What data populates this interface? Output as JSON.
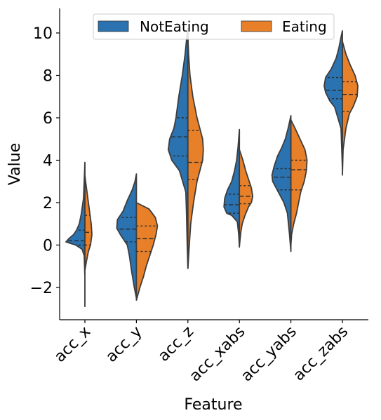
{
  "chart_data": {
    "type": "violin",
    "split": true,
    "xlabel": "Feature",
    "ylabel": "Value",
    "ylim": [
      -3.5,
      11.2
    ],
    "yticks": [
      -2,
      0,
      2,
      4,
      6,
      8,
      10
    ],
    "ytick_labels": [
      "−2",
      "0",
      "2",
      "4",
      "6",
      "8",
      "10"
    ],
    "categories": [
      "acc_x",
      "acc_y",
      "acc_z",
      "acc_xabs",
      "acc_yabs",
      "acc_zabs"
    ],
    "legend": {
      "position": "top-center",
      "ncol": 2
    },
    "series": [
      {
        "name": "NotEating",
        "color": "#2a72b0",
        "side": "left",
        "violins": [
          {
            "ymin": -2.9,
            "ymax": 3.9,
            "profile": [
              [
                -2.9,
                0
              ],
              [
                -1.5,
                0
              ],
              [
                -0.5,
                1
              ],
              [
                -0.2,
                4
              ],
              [
                0,
                13
              ],
              [
                0.15,
                27
              ],
              [
                0.3,
                23
              ],
              [
                0.5,
                16
              ],
              [
                0.7,
                12
              ],
              [
                1.0,
                8
              ],
              [
                1.5,
                5
              ],
              [
                2.2,
                2
              ],
              [
                3.0,
                1
              ],
              [
                3.9,
                0
              ]
            ],
            "quartiles": [
              0.0,
              0.2,
              0.7
            ]
          },
          {
            "ymin": -2.5,
            "ymax": 3.35,
            "profile": [
              [
                -2.5,
                0
              ],
              [
                -2.0,
                3
              ],
              [
                -1.2,
                7
              ],
              [
                -0.5,
                10
              ],
              [
                0,
                13
              ],
              [
                0.5,
                23
              ],
              [
                0.8,
                28
              ],
              [
                1.2,
                27
              ],
              [
                1.6,
                19
              ],
              [
                2.1,
                13
              ],
              [
                2.6,
                6
              ],
              [
                3.0,
                2
              ],
              [
                3.35,
                0
              ]
            ],
            "quartiles": [
              0.15,
              0.75,
              1.3
            ]
          },
          {
            "ymin": -1.1,
            "ymax": 10.2,
            "profile": [
              [
                -1.1,
                0
              ],
              [
                0,
                1
              ],
              [
                1.5,
                2
              ],
              [
                2.5,
                3
              ],
              [
                3.5,
                12
              ],
              [
                4.0,
                23
              ],
              [
                4.5,
                28
              ],
              [
                5.0,
                26
              ],
              [
                5.5,
                20
              ],
              [
                6.0,
                17
              ],
              [
                7.0,
                13
              ],
              [
                8.0,
                8
              ],
              [
                9.0,
                4
              ],
              [
                10.0,
                1
              ],
              [
                10.2,
                0
              ]
            ],
            "quartiles": [
              4.2,
              5.1,
              6.0
            ]
          },
          {
            "ymin": -0.1,
            "ymax": 5.45,
            "profile": [
              [
                -0.1,
                0
              ],
              [
                0.5,
                1
              ],
              [
                1.1,
                3
              ],
              [
                1.4,
                11
              ],
              [
                1.5,
                18
              ],
              [
                1.8,
                22
              ],
              [
                2.2,
                21
              ],
              [
                2.6,
                17
              ],
              [
                3.0,
                11
              ],
              [
                3.5,
                7
              ],
              [
                4.0,
                4
              ],
              [
                4.6,
                2
              ],
              [
                5.45,
                0
              ]
            ],
            "quartiles": [
              1.5,
              1.9,
              2.4
            ]
          },
          {
            "ymin": -0.3,
            "ymax": 6.1,
            "profile": [
              [
                -0.3,
                0
              ],
              [
                0.5,
                2
              ],
              [
                1.5,
                5
              ],
              [
                2.0,
                10
              ],
              [
                2.5,
                18
              ],
              [
                3.0,
                26
              ],
              [
                3.3,
                27
              ],
              [
                3.7,
                24
              ],
              [
                4.2,
                19
              ],
              [
                4.6,
                13
              ],
              [
                5.0,
                8
              ],
              [
                5.5,
                4
              ],
              [
                6.1,
                0
              ]
            ],
            "quartiles": [
              2.6,
              3.2,
              3.6
            ]
          },
          {
            "ymin": 3.6,
            "ymax": 10.1,
            "profile": [
              [
                3.6,
                0
              ],
              [
                5.5,
                2
              ],
              [
                6.5,
                11
              ],
              [
                6.8,
                18
              ],
              [
                7.2,
                24
              ],
              [
                7.5,
                26
              ],
              [
                7.9,
                24
              ],
              [
                8.3,
                16
              ],
              [
                8.8,
                9
              ],
              [
                9.3,
                5
              ],
              [
                9.8,
                2
              ],
              [
                10.1,
                0
              ]
            ],
            "quartiles": [
              6.9,
              7.3,
              7.9
            ]
          }
        ]
      },
      {
        "name": "Eating",
        "color": "#e8802a",
        "side": "right",
        "violins": [
          {
            "ymin": -1.2,
            "ymax": 3.3,
            "profile": [
              [
                -1.2,
                0
              ],
              [
                -0.8,
                2
              ],
              [
                -0.3,
                5
              ],
              [
                0,
                8
              ],
              [
                0.5,
                10
              ],
              [
                1.0,
                9
              ],
              [
                1.5,
                7
              ],
              [
                2.0,
                5
              ],
              [
                2.5,
                3
              ],
              [
                3.0,
                1
              ],
              [
                3.3,
                0
              ]
            ],
            "quartiles": [
              0.0,
              0.6,
              1.4
            ]
          },
          {
            "ymin": -2.6,
            "ymax": 2.0,
            "profile": [
              [
                -2.6,
                0
              ],
              [
                -2.0,
                5
              ],
              [
                -1.5,
                10
              ],
              [
                -1.0,
                14
              ],
              [
                -0.5,
                19
              ],
              [
                0,
                24
              ],
              [
                0.5,
                28
              ],
              [
                0.9,
                30
              ],
              [
                1.3,
                27
              ],
              [
                1.7,
                18
              ],
              [
                2.0,
                0
              ]
            ],
            "quartiles": [
              -0.3,
              0.3,
              0.9
            ]
          },
          {
            "ymin": -1.1,
            "ymax": 9.8,
            "profile": [
              [
                -1.1,
                0
              ],
              [
                0,
                2
              ],
              [
                1.0,
                4
              ],
              [
                2.0,
                8
              ],
              [
                3.0,
                13
              ],
              [
                3.5,
                17
              ],
              [
                4.0,
                21
              ],
              [
                4.5,
                22
              ],
              [
                5.0,
                21
              ],
              [
                5.5,
                17
              ],
              [
                6.0,
                13
              ],
              [
                7.0,
                7
              ],
              [
                8.0,
                3
              ],
              [
                9.0,
                1
              ],
              [
                9.8,
                0
              ]
            ],
            "quartiles": [
              3.1,
              3.9,
              5.4
            ]
          },
          {
            "ymin": -0.05,
            "ymax": 4.5,
            "profile": [
              [
                -0.05,
                0
              ],
              [
                0.6,
                2
              ],
              [
                1.0,
                4
              ],
              [
                1.4,
                8
              ],
              [
                1.8,
                13
              ],
              [
                2.0,
                17
              ],
              [
                2.3,
                19
              ],
              [
                2.7,
                17
              ],
              [
                3.1,
                13
              ],
              [
                3.5,
                9
              ],
              [
                4.0,
                5
              ],
              [
                4.5,
                0
              ]
            ],
            "quartiles": [
              1.95,
              2.3,
              2.8
            ]
          },
          {
            "ymin": 0.0,
            "ymax": 5.9,
            "profile": [
              [
                0,
                0
              ],
              [
                0.5,
                1
              ],
              [
                1.0,
                4
              ],
              [
                1.5,
                8
              ],
              [
                2.0,
                11
              ],
              [
                2.5,
                14
              ],
              [
                3.0,
                19
              ],
              [
                3.5,
                22
              ],
              [
                4.0,
                23
              ],
              [
                4.5,
                20
              ],
              [
                5.0,
                13
              ],
              [
                5.5,
                6
              ],
              [
                5.9,
                0
              ]
            ],
            "quartiles": [
              2.6,
              3.55,
              4.0
            ]
          },
          {
            "ymin": 3.3,
            "ymax": 9.6,
            "profile": [
              [
                3.3,
                0
              ],
              [
                4.5,
                1
              ],
              [
                5.5,
                5
              ],
              [
                6.2,
                10
              ],
              [
                6.5,
                15
              ],
              [
                7.0,
                21
              ],
              [
                7.5,
                22
              ],
              [
                8.0,
                18
              ],
              [
                8.5,
                11
              ],
              [
                9.0,
                5
              ],
              [
                9.6,
                0
              ]
            ],
            "quartiles": [
              6.3,
              7.1,
              7.7
            ]
          }
        ]
      }
    ]
  }
}
